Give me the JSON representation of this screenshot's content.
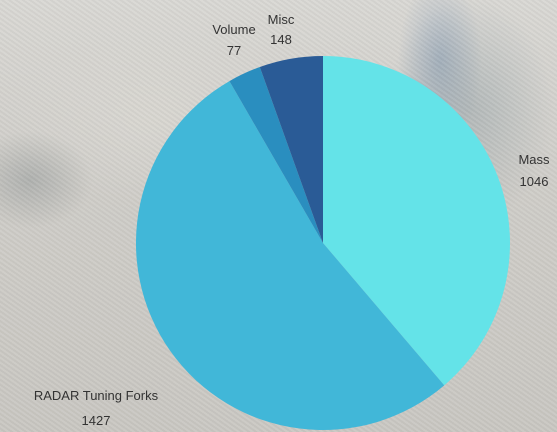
{
  "chart_data": {
    "type": "pie",
    "slices": [
      {
        "label": "Mass",
        "value": 1046,
        "color": "#64e3e8"
      },
      {
        "label": "RADAR Tuning Forks",
        "value": 1427,
        "color": "#41b7d8"
      },
      {
        "label": "Volume",
        "value": 77,
        "color": "#2a8ebf"
      },
      {
        "label": "Misc",
        "value": 148,
        "color": "#2a5b96"
      }
    ],
    "start_angle": "12 o'clock",
    "direction": "clockwise",
    "data_labels": "outside, category name above value"
  }
}
